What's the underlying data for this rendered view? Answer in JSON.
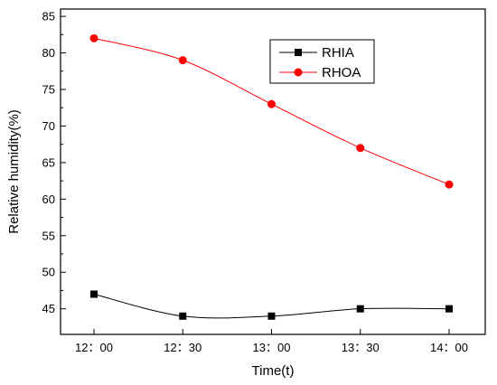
{
  "chart_data": {
    "type": "line",
    "x": [
      "12：00",
      "12：30",
      "13：00",
      "13：30",
      "14：00"
    ],
    "xlabel": "Time(t)",
    "ylabel": "Relative humidity(%)",
    "ylim": [
      41.5,
      86
    ],
    "yticks": [
      45,
      50,
      55,
      60,
      65,
      70,
      75,
      80,
      85
    ],
    "grid": false,
    "legend_position": "top-right",
    "series": [
      {
        "name": "RHIA",
        "values": [
          47,
          44,
          44,
          45,
          45
        ],
        "color": "#000000",
        "marker": "square"
      },
      {
        "name": "RHOA",
        "values": [
          82,
          79,
          73,
          67,
          62
        ],
        "color": "#ff0000",
        "marker": "circle"
      }
    ]
  }
}
